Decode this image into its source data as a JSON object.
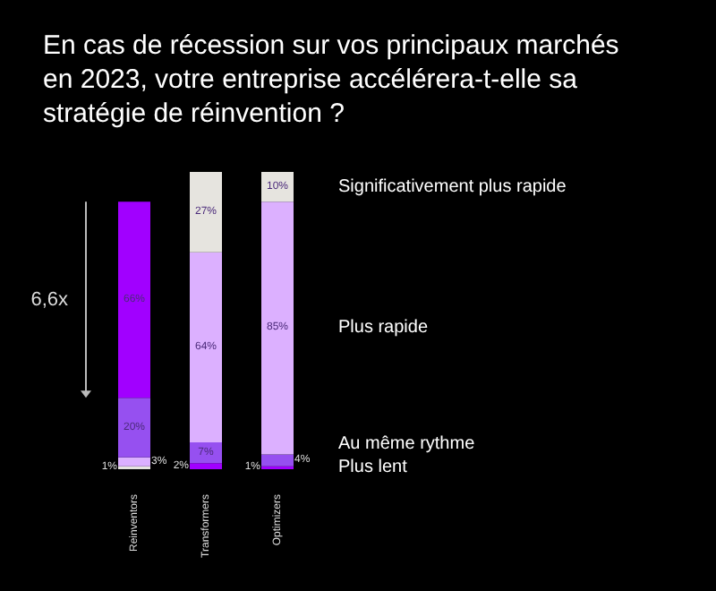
{
  "chart_data": {
    "type": "bar",
    "stacked": true,
    "title": "En cas de récession sur vos principaux marchés en 2023, votre entreprise accélérera-t-elle sa stratégie de réinvention ?",
    "categories": [
      "Reinventors",
      "Transformers",
      "Optimizers"
    ],
    "legend": "right",
    "annotations": [
      "6,6x"
    ],
    "series": [
      {
        "name": "Plus lent",
        "values": [
          1,
          2,
          1
        ],
        "value_labels": [
          "1%",
          "2%",
          "1%"
        ],
        "colors": [
          "#e6e4df",
          "#a100ff",
          "#a100ff"
        ]
      },
      {
        "name": "Au même rythme",
        "values": [
          3,
          7,
          4
        ],
        "value_labels": [
          "3%",
          "7%",
          "4%"
        ],
        "colors": [
          "#dcb0ff",
          "#9650f0",
          "#9650f0"
        ]
      },
      {
        "name": "Plus rapide",
        "values": [
          20,
          64,
          85
        ],
        "value_labels": [
          "20%",
          "64%",
          "85%"
        ],
        "colors": [
          "#9650f0",
          "#dcb0ff",
          "#dcb0ff"
        ]
      },
      {
        "name": "Significativement plus rapide",
        "values": [
          66,
          27,
          10
        ],
        "value_labels": [
          "66%",
          "27%",
          "10%"
        ],
        "colors": [
          "#a100ff",
          "#e6e4df",
          "#e6e4df"
        ]
      }
    ]
  }
}
